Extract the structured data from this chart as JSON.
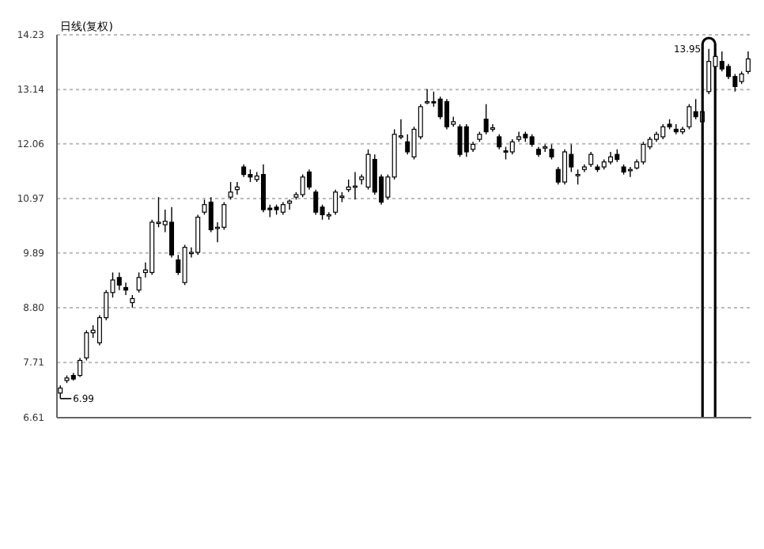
{
  "chart_data": {
    "type": "candlestick",
    "title": "日线(复权)",
    "categories": [
      null,
      null,
      null,
      null,
      null,
      null,
      null,
      null,
      null,
      null,
      null,
      null,
      null,
      null,
      null,
      null,
      null,
      null,
      null,
      null,
      null,
      null,
      null,
      null,
      null,
      null,
      null,
      null,
      null,
      null,
      null,
      null,
      null,
      null,
      null,
      null,
      null,
      null,
      null,
      null,
      null,
      null,
      null,
      null,
      null,
      null,
      null,
      null,
      null,
      null,
      null,
      null,
      null,
      null,
      null,
      null,
      null,
      null,
      null,
      null,
      null,
      null,
      null,
      null,
      null,
      null,
      null,
      null,
      null,
      null,
      null,
      null,
      null,
      null,
      null,
      null,
      null,
      null,
      null,
      null,
      null,
      null,
      null,
      null,
      null,
      null,
      null,
      null,
      null,
      null,
      null,
      null,
      null,
      null,
      null,
      null,
      null,
      null,
      null,
      null,
      null,
      null,
      null,
      null,
      null,
      null
    ],
    "ohlc": [
      [
        7.1,
        7.25,
        6.99,
        7.2
      ],
      [
        7.35,
        7.45,
        7.3,
        7.4
      ],
      [
        7.45,
        7.5,
        7.35,
        7.38
      ],
      [
        7.45,
        7.8,
        7.42,
        7.75
      ],
      [
        7.8,
        8.35,
        7.75,
        8.3
      ],
      [
        8.3,
        8.45,
        8.2,
        8.35
      ],
      [
        8.1,
        8.65,
        8.05,
        8.6
      ],
      [
        8.6,
        9.15,
        8.55,
        9.1
      ],
      [
        9.1,
        9.5,
        9.0,
        9.35
      ],
      [
        9.4,
        9.5,
        9.15,
        9.25
      ],
      [
        9.2,
        9.3,
        9.05,
        9.15
      ],
      [
        8.9,
        9.05,
        8.8,
        8.98
      ],
      [
        9.15,
        9.5,
        9.1,
        9.4
      ],
      [
        9.5,
        9.7,
        9.4,
        9.55
      ],
      [
        9.5,
        10.55,
        9.45,
        10.5
      ],
      [
        10.48,
        11.0,
        10.4,
        10.5
      ],
      [
        10.45,
        10.75,
        10.3,
        10.52
      ],
      [
        10.5,
        10.8,
        9.8,
        9.85
      ],
      [
        9.75,
        9.85,
        9.45,
        9.5
      ],
      [
        9.3,
        10.05,
        9.25,
        10.0
      ],
      [
        9.88,
        10.0,
        9.8,
        9.9
      ],
      [
        9.9,
        10.65,
        9.85,
        10.6
      ],
      [
        10.7,
        10.95,
        10.65,
        10.85
      ],
      [
        10.9,
        11.0,
        10.3,
        10.35
      ],
      [
        10.4,
        10.5,
        10.1,
        10.4
      ],
      [
        10.4,
        10.9,
        10.35,
        10.85
      ],
      [
        11.0,
        11.3,
        10.95,
        11.1
      ],
      [
        11.15,
        11.3,
        11.05,
        11.2
      ],
      [
        11.6,
        11.65,
        11.4,
        11.45
      ],
      [
        11.45,
        11.55,
        11.3,
        11.4
      ],
      [
        11.35,
        11.5,
        11.3,
        11.42
      ],
      [
        11.45,
        11.65,
        10.7,
        10.75
      ],
      [
        10.78,
        10.85,
        10.6,
        10.75
      ],
      [
        10.8,
        10.85,
        10.65,
        10.75
      ],
      [
        10.7,
        10.9,
        10.65,
        10.85
      ],
      [
        10.88,
        10.95,
        10.75,
        10.92
      ],
      [
        11.0,
        11.1,
        10.95,
        11.05
      ],
      [
        11.05,
        11.45,
        11.0,
        11.4
      ],
      [
        11.5,
        11.55,
        11.15,
        11.2
      ],
      [
        11.1,
        11.15,
        10.65,
        10.7
      ],
      [
        10.8,
        10.85,
        10.55,
        10.65
      ],
      [
        10.65,
        10.7,
        10.55,
        10.65
      ],
      [
        10.7,
        11.15,
        10.65,
        11.1
      ],
      [
        11.0,
        11.1,
        10.9,
        11.02
      ],
      [
        11.15,
        11.35,
        11.1,
        11.2
      ],
      [
        11.2,
        11.5,
        10.95,
        11.22
      ],
      [
        11.35,
        11.45,
        11.25,
        11.4
      ],
      [
        11.2,
        11.95,
        11.15,
        11.85
      ],
      [
        11.75,
        11.85,
        11.05,
        11.1
      ],
      [
        11.4,
        11.45,
        10.85,
        10.9
      ],
      [
        11.0,
        11.45,
        10.95,
        11.4
      ],
      [
        11.4,
        12.35,
        11.35,
        12.25
      ],
      [
        12.2,
        12.55,
        12.15,
        12.22
      ],
      [
        12.1,
        12.25,
        11.85,
        11.9
      ],
      [
        11.8,
        12.4,
        11.75,
        12.35
      ],
      [
        12.2,
        12.85,
        12.15,
        12.8
      ],
      [
        12.88,
        13.15,
        12.85,
        12.9
      ],
      [
        12.9,
        13.1,
        12.8,
        12.88
      ],
      [
        12.95,
        13.0,
        12.55,
        12.6
      ],
      [
        12.9,
        12.95,
        12.35,
        12.4
      ],
      [
        12.45,
        12.6,
        12.4,
        12.5
      ],
      [
        12.4,
        12.45,
        11.8,
        11.85
      ],
      [
        12.4,
        12.45,
        11.8,
        11.9
      ],
      [
        11.95,
        12.1,
        11.9,
        12.05
      ],
      [
        12.15,
        12.3,
        12.1,
        12.25
      ],
      [
        12.55,
        12.85,
        12.25,
        12.3
      ],
      [
        12.35,
        12.45,
        12.3,
        12.38
      ],
      [
        12.2,
        12.25,
        11.95,
        12.0
      ],
      [
        11.92,
        12.0,
        11.75,
        11.9
      ],
      [
        11.9,
        12.15,
        11.85,
        12.1
      ],
      [
        12.15,
        12.3,
        12.1,
        12.2
      ],
      [
        12.25,
        12.3,
        12.1,
        12.18
      ],
      [
        12.2,
        12.25,
        12.0,
        12.05
      ],
      [
        11.95,
        12.0,
        11.8,
        11.85
      ],
      [
        11.98,
        12.05,
        11.9,
        12.0
      ],
      [
        11.95,
        12.05,
        11.75,
        11.8
      ],
      [
        11.55,
        11.6,
        11.25,
        11.3
      ],
      [
        11.3,
        11.95,
        11.25,
        11.9
      ],
      [
        11.85,
        12.05,
        11.5,
        11.6
      ],
      [
        11.45,
        11.55,
        11.25,
        11.45
      ],
      [
        11.55,
        11.65,
        11.5,
        11.6
      ],
      [
        11.65,
        11.9,
        11.6,
        11.85
      ],
      [
        11.6,
        11.65,
        11.5,
        11.55
      ],
      [
        11.6,
        11.75,
        11.55,
        11.7
      ],
      [
        11.7,
        11.9,
        11.65,
        11.8
      ],
      [
        11.85,
        11.95,
        11.7,
        11.75
      ],
      [
        11.6,
        11.65,
        11.45,
        11.5
      ],
      [
        11.55,
        11.6,
        11.4,
        11.55
      ],
      [
        11.58,
        11.75,
        11.55,
        11.7
      ],
      [
        11.7,
        12.1,
        11.65,
        12.05
      ],
      [
        12.0,
        12.2,
        11.95,
        12.15
      ],
      [
        12.15,
        12.3,
        12.1,
        12.25
      ],
      [
        12.2,
        12.45,
        12.15,
        12.4
      ],
      [
        12.45,
        12.55,
        12.35,
        12.4
      ],
      [
        12.35,
        12.45,
        12.25,
        12.3
      ],
      [
        12.3,
        12.4,
        12.25,
        12.35
      ],
      [
        12.4,
        12.85,
        12.35,
        12.8
      ],
      [
        12.7,
        12.95,
        12.55,
        12.6
      ],
      [
        12.5,
        12.75,
        12.45,
        12.7
      ],
      [
        13.1,
        13.95,
        13.05,
        13.7
      ],
      [
        13.6,
        13.85,
        13.5,
        13.8
      ],
      [
        13.7,
        13.9,
        13.5,
        13.55
      ],
      [
        13.6,
        13.65,
        13.35,
        13.4
      ],
      [
        13.4,
        13.45,
        13.1,
        13.2
      ],
      [
        13.3,
        13.5,
        13.25,
        13.45
      ],
      [
        13.5,
        13.9,
        13.45,
        13.75
      ]
    ],
    "ylim": [
      6.61,
      14.23
    ],
    "yticks": [
      6.61,
      7.71,
      {
        "value": 8.8,
        "label": "8.80"
      },
      9.89,
      10.97,
      12.06,
      13.14,
      14.23
    ],
    "grid": "y",
    "tick_labels": "y",
    "annotations": [
      "13.95",
      "6.99"
    ]
  }
}
